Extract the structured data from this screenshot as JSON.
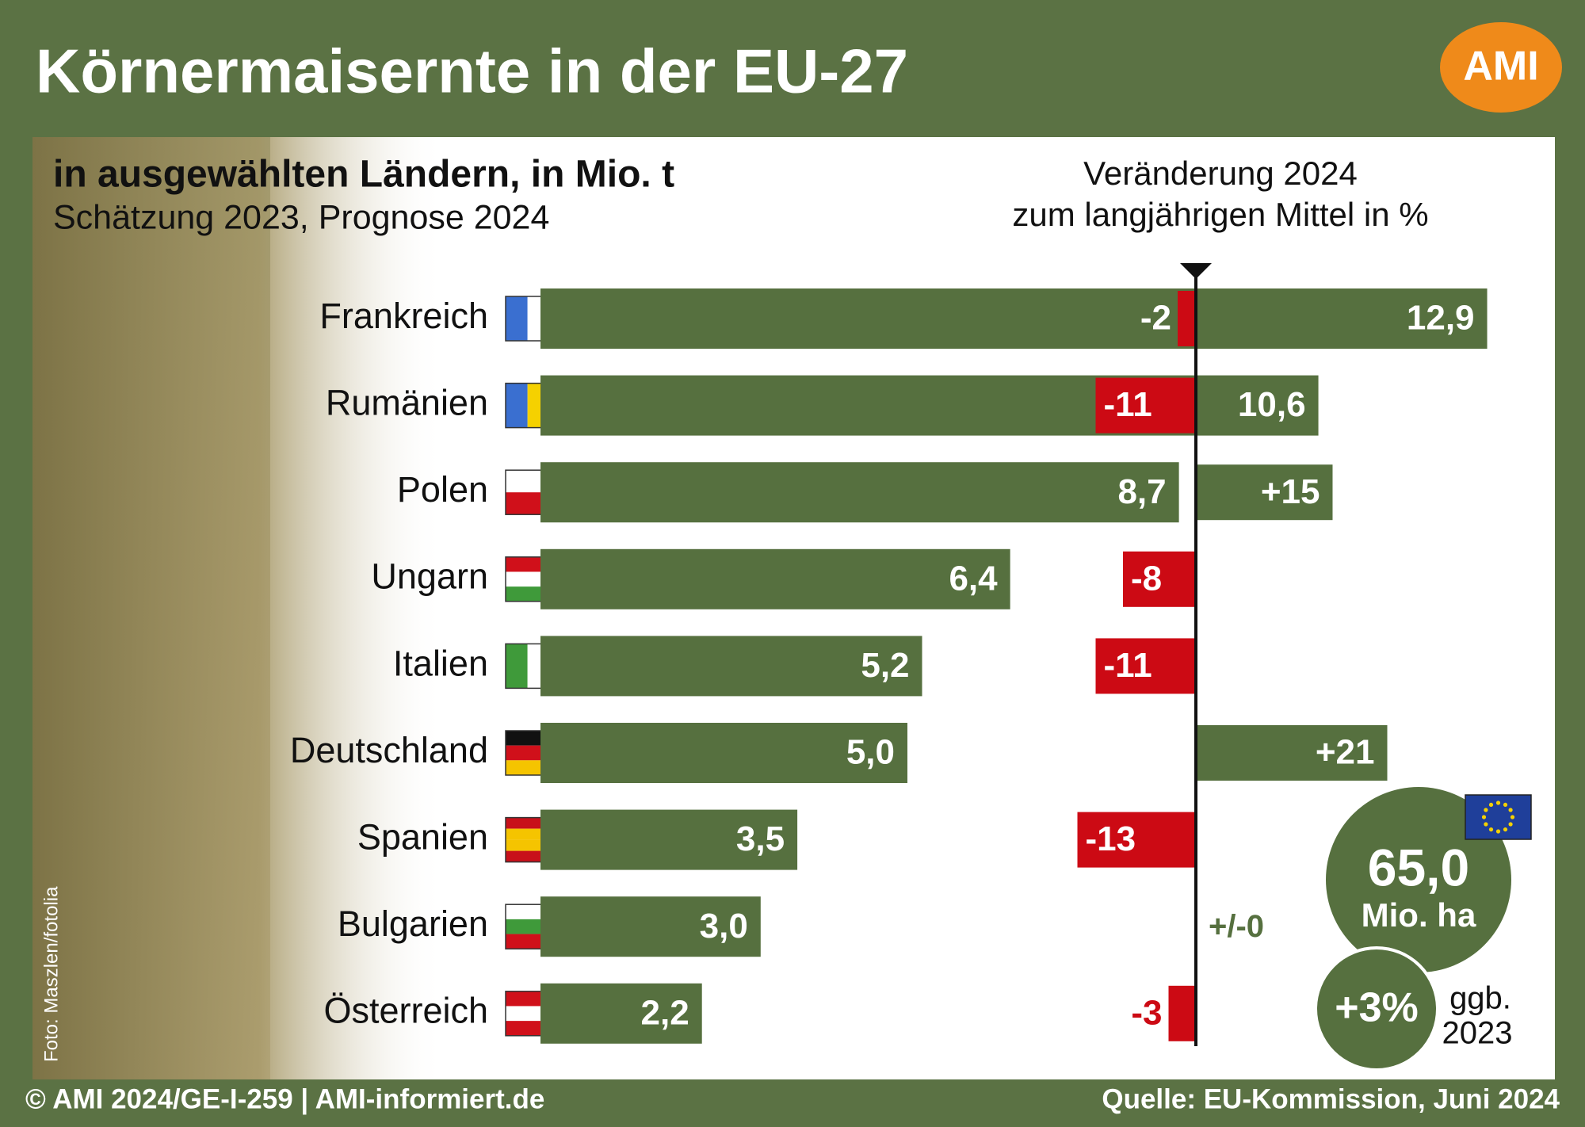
{
  "header": {
    "title": "Körnermaisernte in der EU-27",
    "logo": "AMI"
  },
  "chart_data": {
    "type": "bar",
    "title": "in ausgewählten Ländern, in Mio. t",
    "subtitle": "Schätzung 2023, Prognose 2024",
    "change_header": [
      "Veränderung 2024",
      "zum langjährigen Mittel in %"
    ],
    "categories": [
      "Frankreich",
      "Rumänien",
      "Polen",
      "Ungarn",
      "Italien",
      "Deutschland",
      "Spanien",
      "Bulgarien",
      "Österreich"
    ],
    "series": [
      {
        "values": [
          12.9,
          10.6,
          8.7,
          6.4,
          5.2,
          5.0,
          3.5,
          3.0,
          2.2
        ],
        "value_labels": [
          "12,9",
          "10,6",
          "8,7",
          "6,4",
          "5,2",
          "5,0",
          "3,5",
          "3,0",
          "2,2"
        ],
        "color": "#56703f"
      },
      {
        "values": [
          -2,
          -11,
          15,
          -8,
          -11,
          21,
          -13,
          0,
          -3
        ],
        "value_labels": [
          "-2",
          "-11",
          "+15",
          "-8",
          "-11",
          "+21",
          "-13",
          "+/-0",
          "-3"
        ],
        "color": "#56703f",
        "negative_color": "#cc0a14"
      }
    ],
    "eu_total": {
      "value": 65.0,
      "label": "65,0",
      "unit": "Mio. ha",
      "change": {
        "value": 3,
        "label": "+3%"
      },
      "change_note": [
        "ggb.",
        "2023"
      ]
    }
  },
  "footer": {
    "left": "© AMI 2024/GE-I-259 | AMI-informiert.de",
    "right": "Quelle: EU-Kommission, Juni 2024",
    "photo_credit": "Foto: Maszlen/fotolia"
  }
}
